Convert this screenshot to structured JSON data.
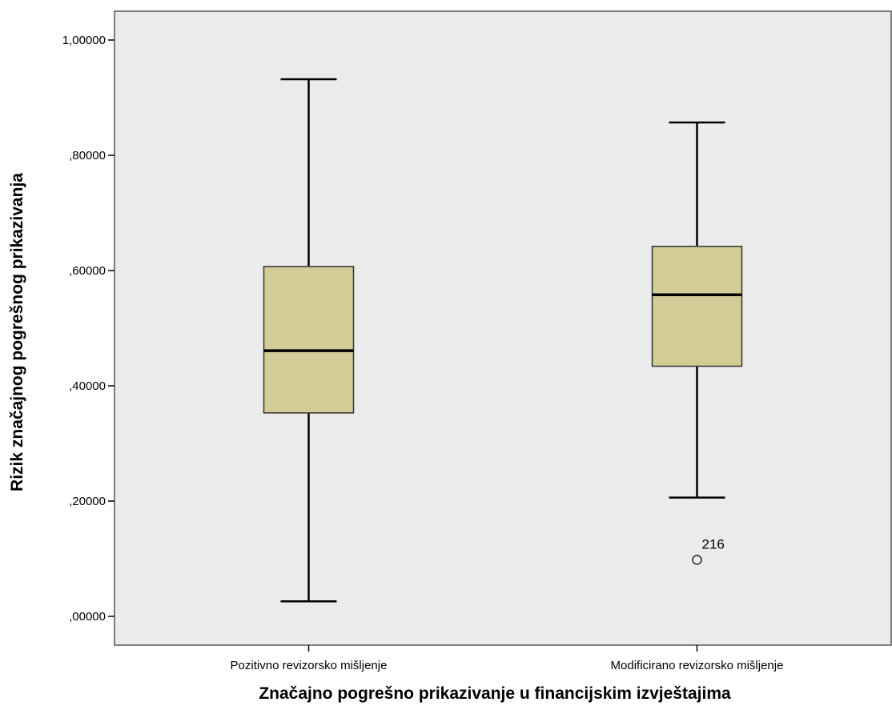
{
  "chart_data": {
    "type": "boxplot",
    "xlabel": "Značajno pogrešno prikazivanje u financijskim izvještajima",
    "ylabel": "Rizik značajnog pogrešnog prikazivanja",
    "ylim": [
      -0.05,
      1.05
    ],
    "yticks": [
      0.0,
      0.2,
      0.4,
      0.6,
      0.8,
      1.0
    ],
    "ytick_labels": [
      ",00000",
      ",20000",
      ",40000",
      ",60000",
      ",80000",
      "1,00000"
    ],
    "categories": [
      "Pozitivno revizorsko mišljenje",
      "Modificirano revizorsko mišljenje"
    ],
    "boxes": [
      {
        "category": "Pozitivno revizorsko mišljenje",
        "min": 0.026,
        "q1": 0.353,
        "median": 0.461,
        "q3": 0.607,
        "max": 0.932,
        "outliers": []
      },
      {
        "category": "Modificirano revizorsko mišljenje",
        "min": 0.206,
        "q1": 0.434,
        "median": 0.558,
        "q3": 0.642,
        "max": 0.857,
        "outliers": [
          {
            "value": 0.098,
            "label": "216"
          }
        ]
      }
    ],
    "grid": false,
    "colors": {
      "plot_background": "#ebebeb",
      "box_fill": "#d3cc97",
      "box_stroke": "#333333",
      "whisker": "#000000"
    }
  }
}
